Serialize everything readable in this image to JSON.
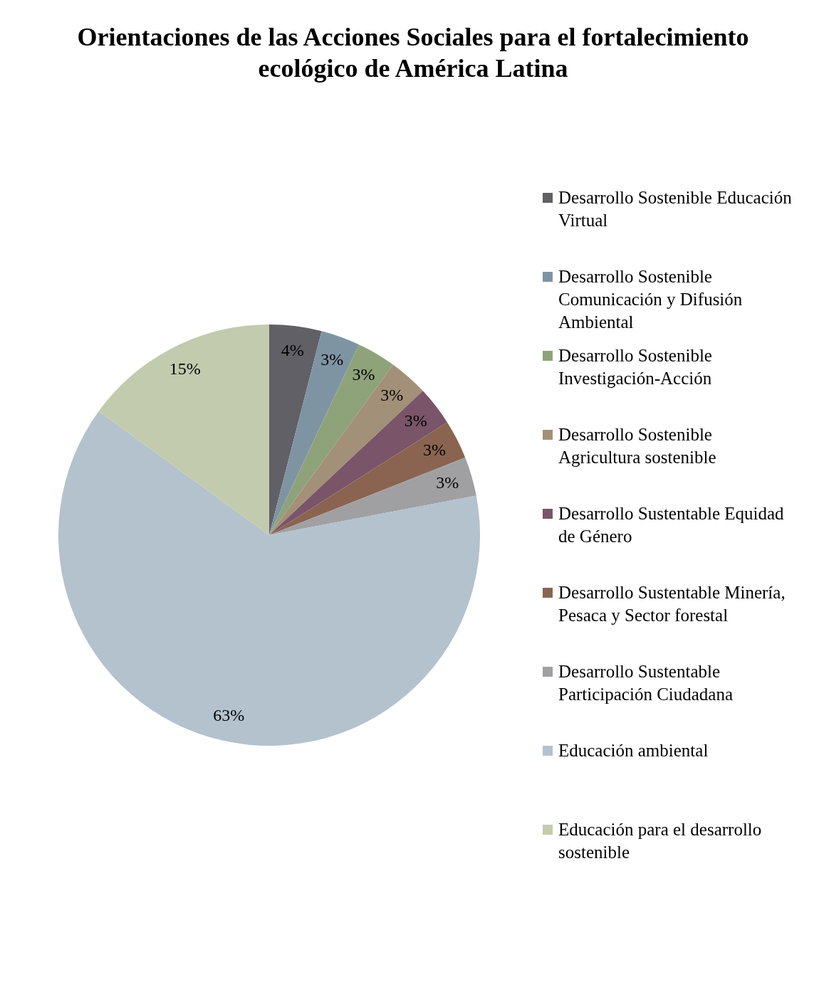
{
  "chart_data": {
    "type": "pie",
    "title": "Orientaciones de las Acciones Sociales para el fortalecimiento ecológico de América Latina",
    "categories": [
      "Desarrollo Sostenible Educación Virtual",
      "Desarrollo Sostenible Comunicación y Difusión Ambiental",
      "Desarrollo Sostenible Investigación-Acción",
      "Desarrollo Sostenible Agricultura sostenible",
      "Desarrollo Sustentable Equidad de Género",
      "Desarrollo Sustentable Minería, Pesaca y Sector forestal",
      "Desarrollo Sustentable Participación Ciudadana",
      "Educación ambiental",
      "Educación para el desarrollo sostenible"
    ],
    "values": [
      4,
      3,
      3,
      3,
      3,
      3,
      3,
      63,
      15
    ],
    "colors": [
      "#606066",
      "#7f94a3",
      "#8fa37a",
      "#a39078",
      "#7a5468",
      "#8a6450",
      "#a0a0a3",
      "#b3c2cd",
      "#c2cbad"
    ],
    "value_labels": [
      "4%",
      "3%",
      "3%",
      "3%",
      "3%",
      "3%",
      "3%",
      "63%",
      "15%"
    ],
    "legend": "right"
  }
}
